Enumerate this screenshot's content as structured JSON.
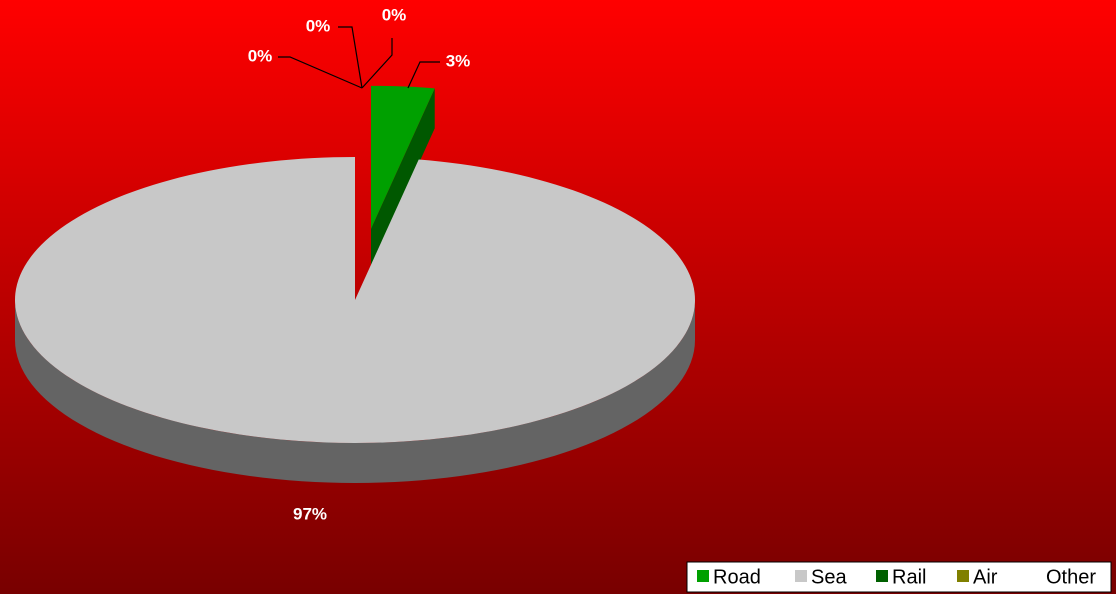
{
  "chart_data": {
    "type": "pie",
    "categories": [
      "Road",
      "Sea",
      "Rail",
      "Air",
      "Other"
    ],
    "values": [
      3,
      97,
      0,
      0,
      0
    ],
    "value_labels": [
      "3%",
      "97%",
      "0%",
      "0%",
      "0%"
    ],
    "colors": [
      "#00a000",
      "#c8c8c8",
      "#006000",
      "#808000",
      "#ffffff"
    ],
    "legend": "bottom-right"
  }
}
